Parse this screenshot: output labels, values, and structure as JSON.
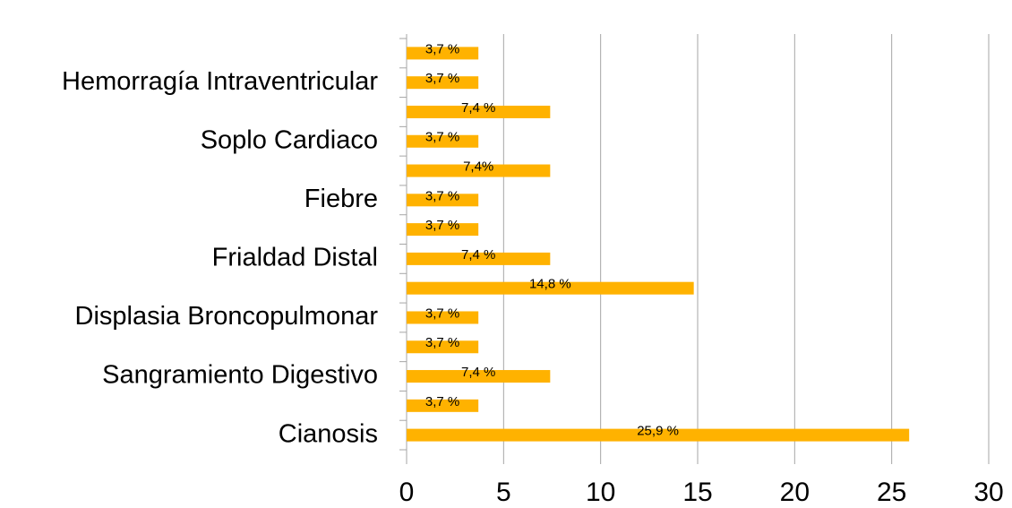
{
  "chart_data": {
    "type": "bar",
    "orientation": "horizontal",
    "categories": [
      "Cianosis",
      null,
      "Sangramiento Digestivo",
      null,
      "Displasia Broncopulmonar",
      null,
      "Frialdad Distal",
      null,
      "Fiebre",
      null,
      "Soplo Cardiaco",
      null,
      "Hemorragía Intraventricular",
      null
    ],
    "values": [
      25.9,
      3.7,
      7.4,
      3.7,
      3.7,
      14.8,
      7.4,
      3.7,
      3.7,
      7.4,
      3.7,
      7.4,
      3.7,
      3.7
    ],
    "value_labels": [
      "25,9 %",
      "3,7 %",
      "7,4 %",
      "3,7 %",
      "3,7 %",
      "14,8 %",
      "7,4 %",
      "3,7 %",
      "3,7 %",
      "7,4%",
      "3,7 %",
      "7,4 %",
      "3,7 %",
      "3,7 %"
    ],
    "color": "#ffb200",
    "xlim": [
      0,
      30
    ],
    "xticks": [
      0,
      5,
      10,
      15,
      20,
      25,
      30
    ],
    "grid": true
  }
}
